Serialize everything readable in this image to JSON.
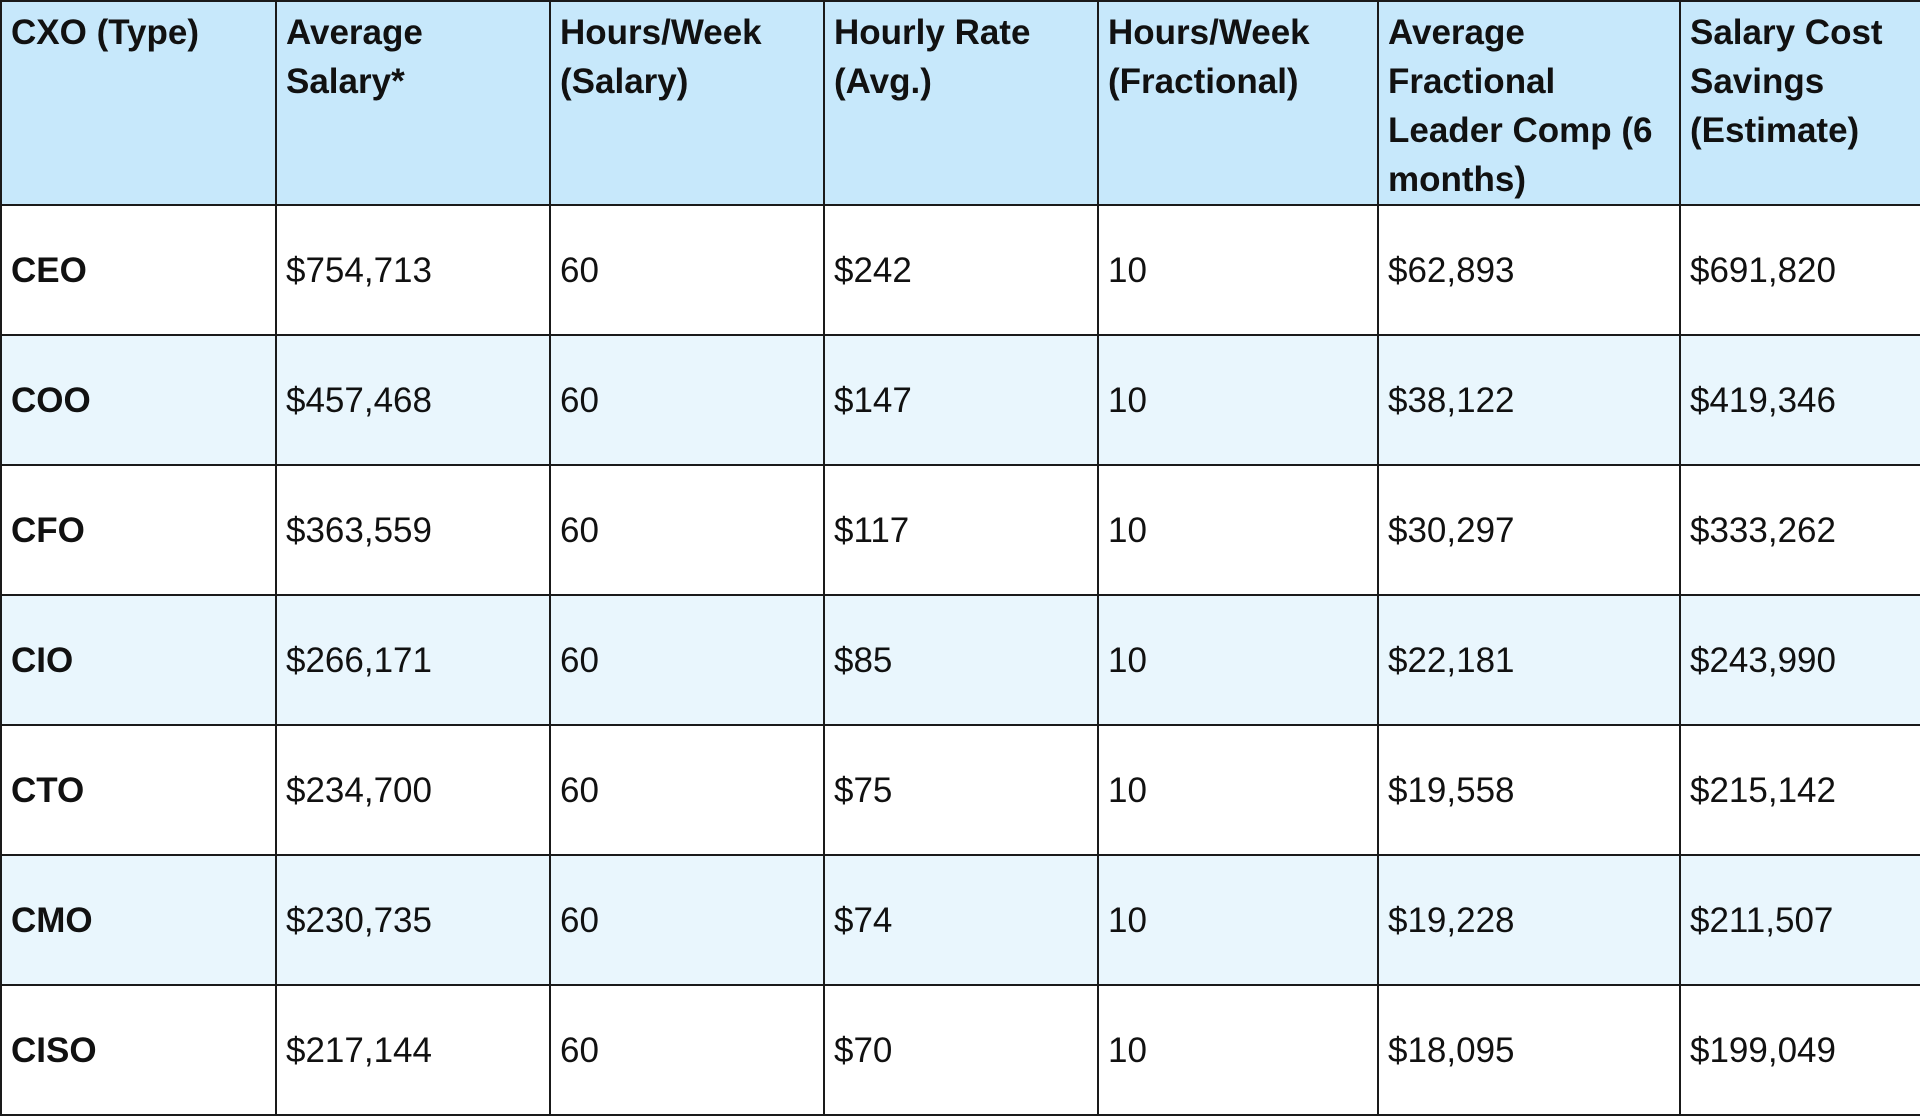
{
  "table": {
    "headers": [
      "CXO (Type)",
      "Average Salary*",
      "Hours/Week (Salary)",
      "Hourly Rate (Avg.)",
      "Hours/Week (Fractional)",
      "Average Fractional Leader Comp (6 months)",
      "Salary Cost Savings (Estimate)"
    ],
    "rows": [
      [
        "CEO",
        "$754,713",
        "60",
        "$242",
        "10",
        "$62,893",
        "$691,820"
      ],
      [
        "COO",
        "$457,468",
        "60",
        "$147",
        "10",
        "$38,122",
        "$419,346"
      ],
      [
        "CFO",
        "$363,559",
        "60",
        "$117",
        "10",
        "$30,297",
        "$333,262"
      ],
      [
        "CIO",
        "$266,171",
        "60",
        "$85",
        "10",
        "$22,181",
        "$243,990"
      ],
      [
        "CTO",
        "$234,700",
        "60",
        "$75",
        "10",
        "$19,558",
        "$215,142"
      ],
      [
        "CMO",
        "$230,735",
        "60",
        "$74",
        "10",
        "$19,228",
        "$211,507"
      ],
      [
        "CISO",
        "$217,144",
        "60",
        "$70",
        "10",
        "$18,095",
        "$199,049"
      ]
    ],
    "colors": {
      "header_bg": "#c7e8fb",
      "stripe_bg": "#e9f6fd",
      "row_bg": "#ffffff",
      "border": "#1a1a1a"
    }
  }
}
